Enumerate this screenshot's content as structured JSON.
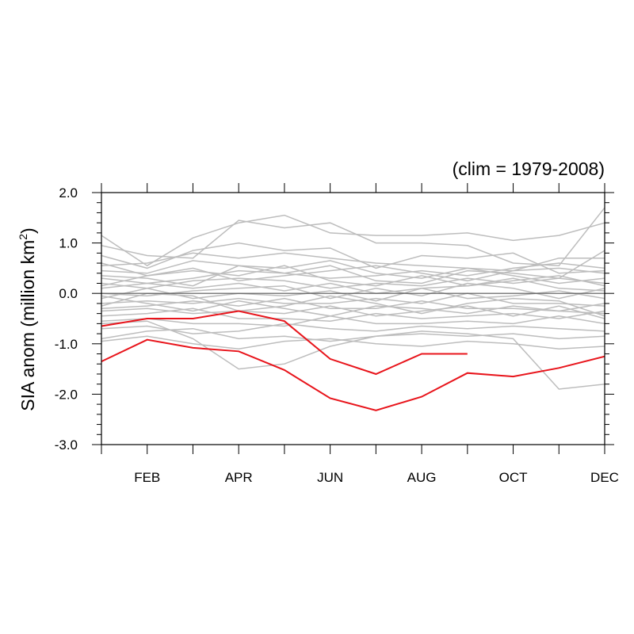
{
  "chart_data": {
    "type": "line",
    "title": "(clim = 1979-2008)",
    "ylabel": {
      "main": "SIA anom (million km",
      "sup": "2",
      "tail": ")"
    },
    "xlabel": "",
    "x_months": [
      1,
      2,
      3,
      4,
      5,
      6,
      7,
      8,
      9,
      10,
      11,
      12
    ],
    "xtick_labels": [
      {
        "month": 2,
        "label": "FEB"
      },
      {
        "month": 4,
        "label": "APR"
      },
      {
        "month": 6,
        "label": "JUN"
      },
      {
        "month": 8,
        "label": "AUG"
      },
      {
        "month": 10,
        "label": "OCT"
      },
      {
        "month": 12,
        "label": "DEC"
      }
    ],
    "xlim": [
      1,
      12
    ],
    "ylim": [
      -3.0,
      2.0
    ],
    "ytick_labels": [
      {
        "value": 2.0,
        "label": "2.0"
      },
      {
        "value": 1.0,
        "label": "1.0"
      },
      {
        "value": 0.0,
        "label": "0.0"
      },
      {
        "value": -1.0,
        "label": "-1.0"
      },
      {
        "value": -2.0,
        "label": "-2.0"
      },
      {
        "value": -3.0,
        "label": "-3.0"
      }
    ],
    "zero_line": true,
    "grid": false,
    "colors": {
      "background_series": "#bdbdbd",
      "highlight_series": "#e8141b",
      "zero_line": "#555555",
      "axes": "#000000"
    },
    "background_series": [
      [
        1.15,
        0.55,
        1.1,
        1.4,
        1.55,
        1.2,
        1.15,
        1.15,
        1.2,
        1.05,
        1.15,
        1.4
      ],
      [
        0.95,
        0.75,
        0.7,
        1.45,
        1.3,
        1.4,
        1.0,
        1.0,
        0.95,
        0.6,
        0.55,
        1.7
      ],
      [
        0.75,
        0.5,
        0.85,
        1.0,
        0.85,
        0.9,
        0.5,
        0.75,
        0.7,
        0.8,
        0.4,
        0.45
      ],
      [
        0.55,
        0.6,
        0.8,
        0.7,
        0.8,
        0.7,
        0.6,
        0.55,
        0.5,
        0.45,
        0.7,
        0.7
      ],
      [
        0.45,
        0.4,
        0.65,
        0.55,
        0.5,
        0.65,
        0.4,
        0.3,
        0.5,
        0.35,
        0.2,
        0.3
      ],
      [
        0.3,
        0.2,
        0.3,
        0.45,
        0.4,
        0.3,
        0.35,
        0.45,
        0.35,
        0.5,
        0.6,
        0.5
      ],
      [
        0.2,
        0.1,
        0.25,
        0.3,
        0.25,
        0.1,
        0.2,
        0.15,
        0.3,
        0.2,
        0.3,
        0.2
      ],
      [
        0.1,
        0.2,
        0.1,
        0.2,
        0.05,
        0.2,
        0.0,
        0.1,
        0.15,
        0.3,
        0.1,
        0.05
      ],
      [
        0.0,
        -0.05,
        0.05,
        0.1,
        0.15,
        -0.1,
        0.1,
        -0.05,
        0.2,
        0.1,
        -0.1,
        0.1
      ],
      [
        -0.1,
        0.1,
        -0.1,
        0.0,
        -0.05,
        0.05,
        -0.15,
        0.1,
        -0.1,
        -0.05,
        0.05,
        -0.1
      ],
      [
        -0.2,
        -0.15,
        -0.2,
        -0.1,
        -0.2,
        -0.2,
        -0.1,
        -0.2,
        0.0,
        -0.2,
        -0.2,
        -0.25
      ],
      [
        -0.3,
        -0.25,
        -0.15,
        -0.25,
        -0.1,
        -0.3,
        -0.3,
        -0.15,
        -0.3,
        -0.3,
        -0.35,
        -0.4
      ],
      [
        -0.35,
        -0.3,
        -0.4,
        -0.35,
        -0.4,
        -0.25,
        -0.45,
        -0.35,
        -0.25,
        -0.45,
        -0.25,
        -0.5
      ],
      [
        -0.45,
        -0.4,
        -0.3,
        -0.5,
        -0.5,
        -0.55,
        -0.4,
        -0.5,
        -0.45,
        -0.4,
        -0.5,
        -0.35
      ],
      [
        -0.55,
        -0.5,
        -0.6,
        -0.6,
        -0.65,
        -0.45,
        -0.6,
        -0.6,
        -0.55,
        -0.6,
        -0.45,
        -0.6
      ],
      [
        -0.7,
        -0.65,
        -0.8,
        -0.75,
        -0.6,
        -0.7,
        -0.75,
        -0.65,
        -0.7,
        -0.65,
        -0.7,
        -0.75
      ],
      [
        -0.9,
        -0.75,
        -0.7,
        -0.9,
        -0.85,
        -0.95,
        -0.85,
        -0.8,
        -0.85,
        -0.8,
        -0.9,
        -0.85
      ],
      [
        -0.95,
        -0.85,
        -1.0,
        -1.1,
        -0.95,
        -0.9,
        -1.0,
        -1.05,
        -0.95,
        -1.0,
        -1.1,
        -1.05
      ],
      [
        -0.6,
        -0.55,
        -0.9,
        -1.5,
        -1.4,
        -1.05,
        -0.85,
        -0.75,
        -0.8,
        -0.9,
        -1.9,
        -1.8
      ],
      [
        0.35,
        0.3,
        0.15,
        0.55,
        0.4,
        0.55,
        0.25,
        0.2,
        0.45,
        0.4,
        0.3,
        0.85
      ],
      [
        -0.05,
        -0.2,
        -0.35,
        -0.15,
        -0.3,
        -0.45,
        -0.25,
        -0.3,
        -0.4,
        -0.25,
        -0.35,
        -0.2
      ],
      [
        0.15,
        0.35,
        0.5,
        0.25,
        0.35,
        0.45,
        0.55,
        0.4,
        0.25,
        0.45,
        0.5,
        0.4
      ],
      [
        -0.25,
        0.0,
        -0.05,
        -0.35,
        -0.25,
        -0.05,
        -0.2,
        -0.4,
        -0.2,
        -0.1,
        -0.15,
        -0.45
      ],
      [
        0.6,
        0.35,
        0.45,
        0.35,
        0.55,
        0.25,
        0.15,
        0.35,
        0.15,
        0.25,
        0.35,
        0.15
      ]
    ],
    "highlight_series": [
      [
        -0.65,
        -0.5,
        -0.5,
        -0.35,
        -0.55,
        -1.3,
        -1.6,
        -1.2,
        -1.2
      ],
      [
        -1.35,
        -0.92,
        -1.08,
        -1.15,
        -1.52,
        -2.08,
        -2.32,
        -2.05,
        -1.58,
        -1.65,
        -1.48,
        -1.25
      ]
    ]
  }
}
